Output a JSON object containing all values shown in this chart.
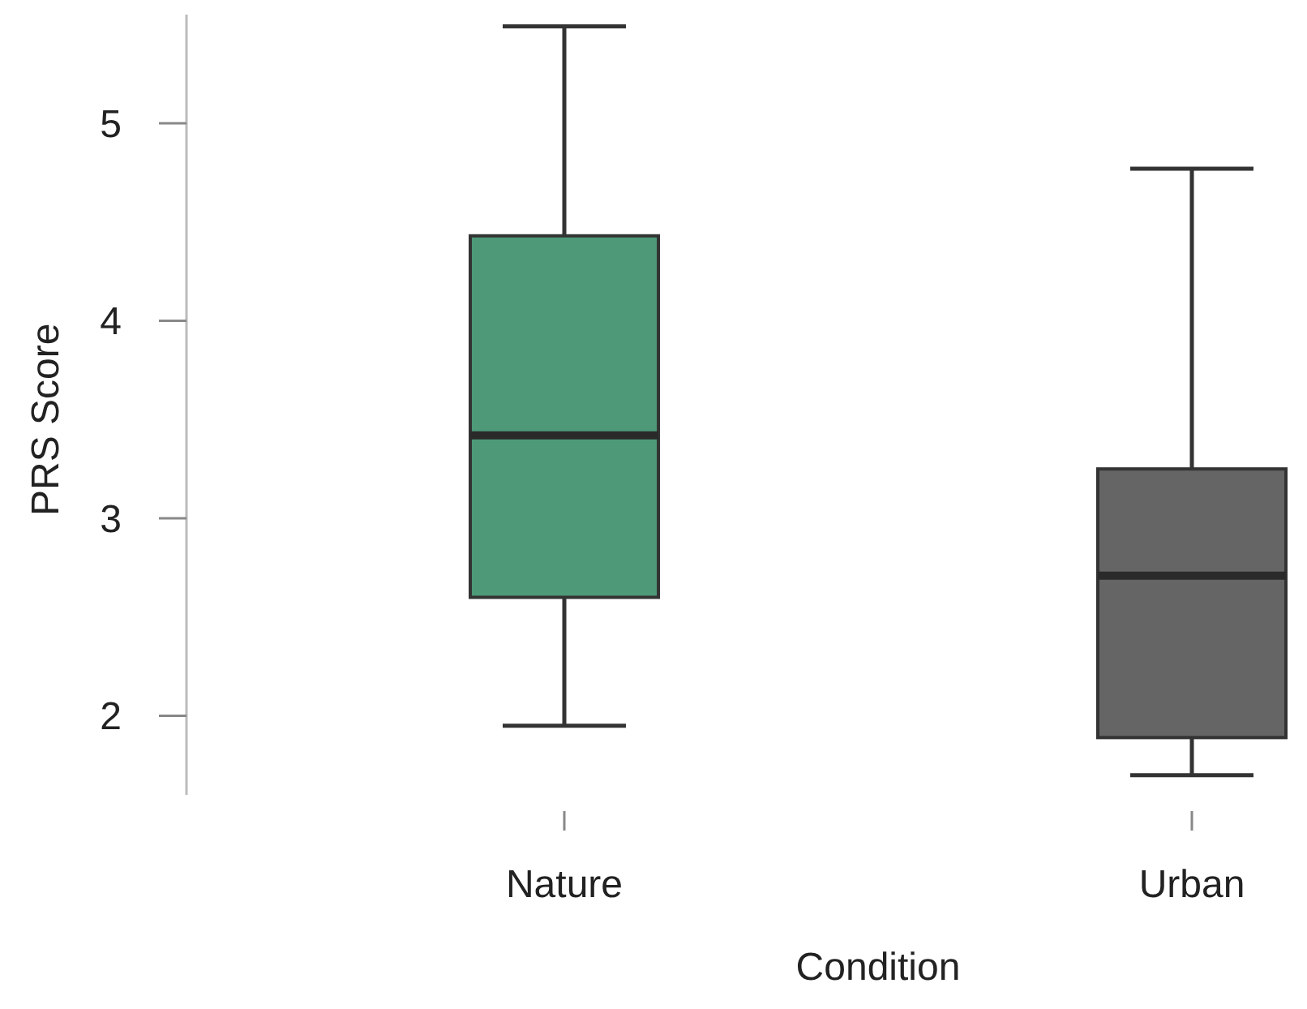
{
  "chart_data": {
    "type": "box",
    "xlabel": "Condition",
    "ylabel": "PRS Score",
    "categories": [
      "Nature",
      "Urban"
    ],
    "ylim": [
      1.6,
      5.55
    ],
    "yticks": [
      2,
      3,
      4,
      5
    ],
    "colors": [
      "#4e9a78",
      "#656565"
    ],
    "boxes": [
      {
        "low": 1.95,
        "q1": 2.6,
        "median": 3.42,
        "q3": 4.43,
        "high": 5.49
      },
      {
        "low": 1.7,
        "q1": 1.89,
        "median": 2.71,
        "q3": 3.25,
        "high": 4.77
      }
    ]
  }
}
